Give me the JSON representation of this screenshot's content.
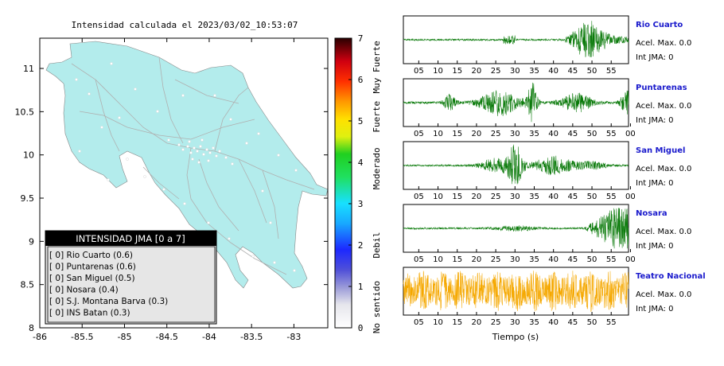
{
  "chart_data": [
    {
      "type": "heatmap",
      "title": "Intensidad calculada el 2023/03/02_10:53:07",
      "x_ticks": [
        -86,
        -85.5,
        -85,
        -84.5,
        -84,
        -83.5,
        -83
      ],
      "y_ticks": [
        8,
        8.5,
        9,
        9.5,
        10,
        10.5,
        11
      ],
      "xlim": [
        -86,
        -82.6
      ],
      "ylim": [
        8,
        11.35
      ],
      "colorbar": {
        "range": [
          0,
          7
        ],
        "ticks": [
          0,
          1,
          2,
          3,
          4,
          5,
          6,
          7
        ],
        "labels": [
          "No sentido",
          "Debil",
          "Moderado",
          "Fuerte",
          "Muy Fuerte"
        ]
      },
      "legend": {
        "title": "INTENSIDAD JMA [0 a 7]",
        "entries": [
          "[ 0]  Rio Cuarto (0.6)",
          "[ 0]  Puntarenas (0.6)",
          "[ 0]  San Miguel (0.5)",
          "[ 0]  Nosara (0.4)",
          "[ 0]  S.J. Montana Barva (0.3)",
          "[ 0]  INS Batan (0.3)"
        ]
      }
    },
    {
      "type": "line",
      "xlabel": "Tiempo (s)",
      "panels": [
        {
          "station": "Rio Cuarto",
          "acel": "Acel. Max. 0.0",
          "jma": "Int JMA: 0",
          "ticks": [
            "05",
            "10",
            "15",
            "20",
            "25",
            "30",
            "35",
            "40",
            "45",
            "50",
            "55"
          ],
          "color": "#0a7a0a"
        },
        {
          "station": "Puntarenas",
          "acel": "Acel. Max. 0.0",
          "jma": "Int JMA: 0",
          "ticks": [
            "05",
            "10",
            "15",
            "20",
            "25",
            "30",
            "35",
            "40",
            "45",
            "50",
            "55",
            "00"
          ],
          "color": "#0a7a0a"
        },
        {
          "station": "San Miguel",
          "acel": "Acel. Max. 0.0",
          "jma": "Int JMA: 0",
          "ticks": [
            "05",
            "10",
            "15",
            "20",
            "25",
            "30",
            "35",
            "40",
            "45",
            "50",
            "55",
            "00"
          ],
          "color": "#0a7a0a"
        },
        {
          "station": "Nosara",
          "acel": "Acel. Max. 0.0",
          "jma": "Int JMA: 0",
          "ticks": [
            "05",
            "10",
            "15",
            "20",
            "25",
            "30",
            "35",
            "40",
            "45",
            "50",
            "55",
            "00"
          ],
          "color": "#0a7a0a"
        },
        {
          "station": "Teatro Nacional",
          "acel": "Acel. Max. 0.0",
          "jma": "Int JMA: 0",
          "ticks": [
            "05",
            "10",
            "15",
            "20",
            "25",
            "30",
            "35",
            "40",
            "45",
            "50",
            "55"
          ],
          "color": "#f5a800"
        }
      ]
    }
  ],
  "colors": {
    "land": "#b3ecec",
    "station_link": "#1a1acc",
    "legend_header_bg": "#000000",
    "legend_bg": "#e6e6e6"
  }
}
